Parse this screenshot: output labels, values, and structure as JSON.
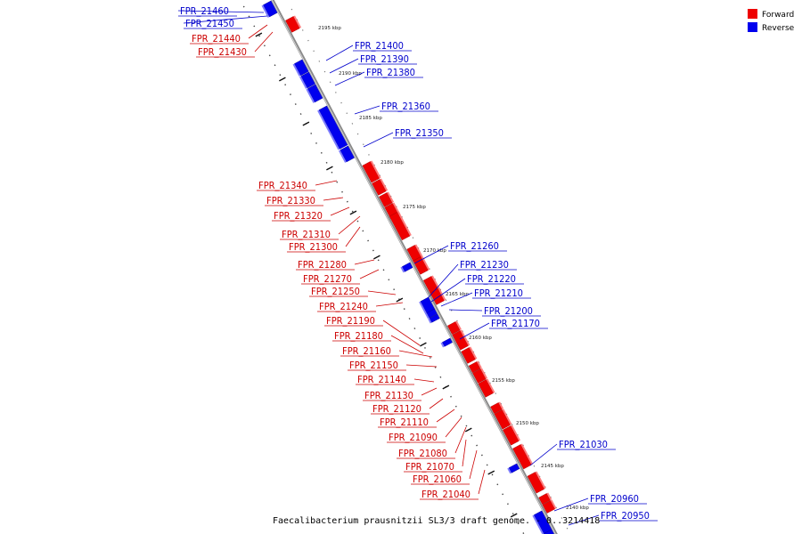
{
  "title": "Faecalibacterium prausnitzii SL3/3 draft genome. - 0..3214418",
  "legend": [
    {
      "label": "Forward",
      "color": "#ee0000"
    },
    {
      "label": "Reverse",
      "color": "#0000ee"
    }
  ],
  "colors": {
    "forward": "#ee0000",
    "reverse": "#0000ee",
    "backbone": "#8a8a8a"
  },
  "ticks": [
    {
      "label": "2195 kbp"
    },
    {
      "label": "2190 kbp"
    },
    {
      "label": "2185 kbp"
    },
    {
      "label": "2180 kbp"
    },
    {
      "label": "2175 kbp"
    },
    {
      "label": "2170 kbp"
    },
    {
      "label": "2165 kbp"
    },
    {
      "label": "2160 kbp"
    },
    {
      "label": "2155 kbp"
    },
    {
      "label": "2150 kbp"
    },
    {
      "label": "2145 kbp"
    },
    {
      "label": "2140 kbp"
    }
  ],
  "genes": [
    {
      "name": "FPR_21460",
      "strand": "reverse"
    },
    {
      "name": "FPR_21450",
      "strand": "reverse"
    },
    {
      "name": "FPR_21440",
      "strand": "forward"
    },
    {
      "name": "FPR_21430",
      "strand": "forward"
    },
    {
      "name": "FPR_21400",
      "strand": "reverse"
    },
    {
      "name": "FPR_21390",
      "strand": "reverse"
    },
    {
      "name": "FPR_21380",
      "strand": "reverse"
    },
    {
      "name": "FPR_21360",
      "strand": "reverse"
    },
    {
      "name": "FPR_21350",
      "strand": "reverse"
    },
    {
      "name": "FPR_21340",
      "strand": "forward"
    },
    {
      "name": "FPR_21330",
      "strand": "forward"
    },
    {
      "name": "FPR_21320",
      "strand": "forward"
    },
    {
      "name": "FPR_21310",
      "strand": "forward"
    },
    {
      "name": "FPR_21300",
      "strand": "forward"
    },
    {
      "name": "FPR_21260",
      "strand": "reverse"
    },
    {
      "name": "FPR_21280",
      "strand": "forward"
    },
    {
      "name": "FPR_21230",
      "strand": "reverse"
    },
    {
      "name": "FPR_21270",
      "strand": "forward"
    },
    {
      "name": "FPR_21220",
      "strand": "reverse"
    },
    {
      "name": "FPR_21250",
      "strand": "forward"
    },
    {
      "name": "FPR_21210",
      "strand": "reverse"
    },
    {
      "name": "FPR_21240",
      "strand": "forward"
    },
    {
      "name": "FPR_21200",
      "strand": "reverse"
    },
    {
      "name": "FPR_21190",
      "strand": "forward"
    },
    {
      "name": "FPR_21170",
      "strand": "reverse"
    },
    {
      "name": "FPR_21180",
      "strand": "forward"
    },
    {
      "name": "FPR_21160",
      "strand": "forward"
    },
    {
      "name": "FPR_21150",
      "strand": "forward"
    },
    {
      "name": "FPR_21140",
      "strand": "forward"
    },
    {
      "name": "FPR_21130",
      "strand": "forward"
    },
    {
      "name": "FPR_21120",
      "strand": "forward"
    },
    {
      "name": "FPR_21110",
      "strand": "forward"
    },
    {
      "name": "FPR_21090",
      "strand": "forward"
    },
    {
      "name": "FPR_21030",
      "strand": "reverse"
    },
    {
      "name": "FPR_21080",
      "strand": "forward"
    },
    {
      "name": "FPR_21070",
      "strand": "forward"
    },
    {
      "name": "FPR_21060",
      "strand": "forward"
    },
    {
      "name": "FPR_21040",
      "strand": "forward"
    },
    {
      "name": "FPR_20960",
      "strand": "reverse"
    },
    {
      "name": "FPR_20950",
      "strand": "reverse"
    }
  ]
}
